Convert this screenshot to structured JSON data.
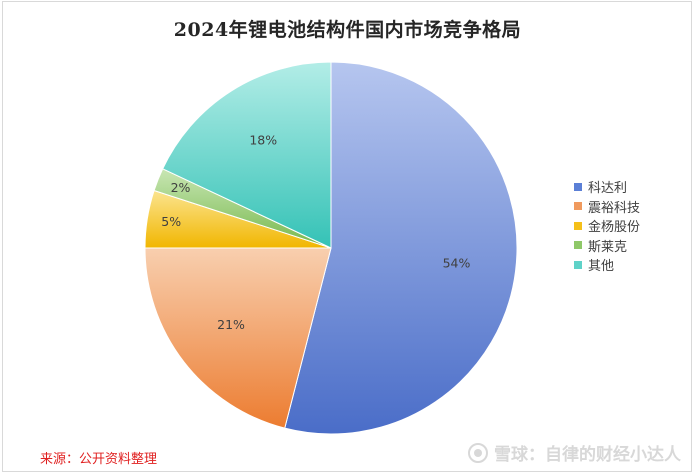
{
  "chart_data": {
    "type": "pie",
    "title": "2024年锂电池结构件国内市场竞争格局",
    "start_angle": "top",
    "direction": "clockwise",
    "legend_position": "right",
    "slices": [
      {
        "name": "科达利",
        "value": 54,
        "label": "54%",
        "color": "#5b7fd6",
        "color_light": "#b6c6ef",
        "color_dark": "#4a6dc8"
      },
      {
        "name": "震裕科技",
        "value": 21,
        "label": "21%",
        "color": "#f09a5e",
        "color_light": "#f8cfaf",
        "color_dark": "#ec7c30"
      },
      {
        "name": "金杨股份",
        "value": 5,
        "label": "5%",
        "color": "#f5c01a",
        "color_light": "#fbe48f",
        "color_dark": "#f1b600"
      },
      {
        "name": "斯莱克",
        "value": 2,
        "label": "2%",
        "color": "#8fc869",
        "color_light": "#c8e6b3",
        "color_dark": "#76b84c"
      },
      {
        "name": "其他",
        "value": 18,
        "label": "18%",
        "color": "#5fd2c8",
        "color_light": "#b3ede7",
        "color_dark": "#34c2b6"
      }
    ]
  },
  "footer": {
    "source": "来源：公开资料整理",
    "watermark": "雪球：自律的财经小达人"
  }
}
